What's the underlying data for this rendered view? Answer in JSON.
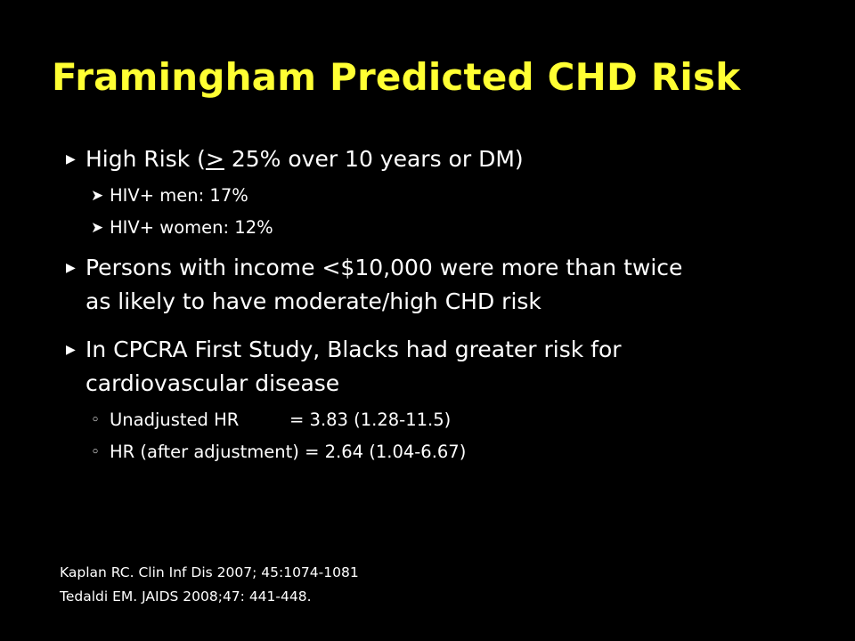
{
  "slide": {
    "title": "Framingham Predicted CHD Risk",
    "colors": {
      "background": "#000000",
      "title": "#ffff33",
      "text": "#ffffff"
    },
    "bullets": {
      "b1": {
        "text": "High Risk (> 25% over 10 years or DM)",
        "subs": [
          "HIV+ men: 17%",
          "HIV+ women: 12%"
        ]
      },
      "b2": {
        "line1": "Persons with income <$10,000 were more than twice",
        "line2": "as likely to have moderate/high CHD risk"
      },
      "b3": {
        "line1": "In CPCRA First Study, Blacks had greater risk for",
        "line2": "cardiovascular disease",
        "subs": [
          {
            "label": "Unadjusted HR",
            "value": "= 3.83 (1.28-11.5)"
          },
          {
            "label": "HR (after adjustment)",
            "value": "= 2.64 (1.04-6.67)"
          }
        ]
      }
    },
    "references": [
      "Kaplan RC. Clin Inf Dis 2007; 45:1074-1081",
      "Tedaldi EM. JAIDS 2008;47: 441-448."
    ],
    "icons": {
      "level1": "triangle-bullet-icon",
      "level2_arrow": "arrowhead-bullet-icon",
      "level2_circle": "circle-bullet-icon"
    }
  }
}
